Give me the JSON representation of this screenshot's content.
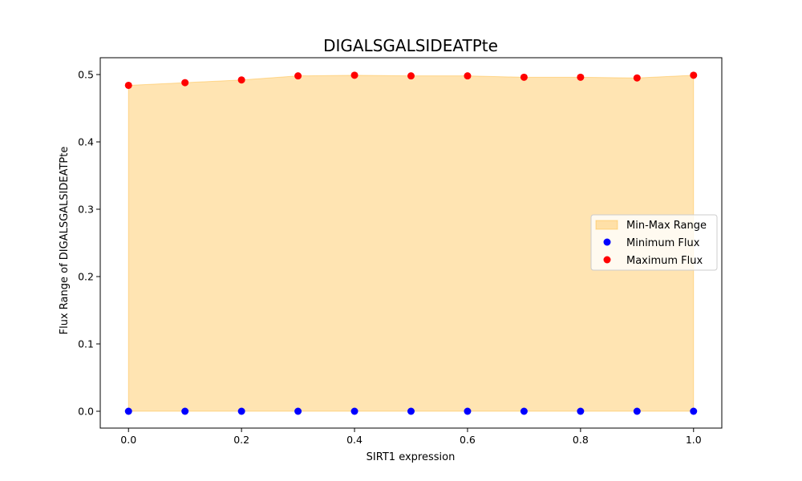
{
  "chart_data": {
    "type": "scatter",
    "title": "DIGALSGALSIDEATPte",
    "xlabel": "SIRT1 expression",
    "ylabel": "Flux Range of DIGALSGALSIDEATPte",
    "x": [
      0.0,
      0.1,
      0.2,
      0.3,
      0.4,
      0.5,
      0.6,
      0.7,
      0.8,
      0.9,
      1.0
    ],
    "series": [
      {
        "name": "Minimum Flux",
        "color": "#0000ff",
        "values": [
          0,
          0,
          0,
          0,
          0,
          0,
          0,
          0,
          0,
          0,
          0
        ]
      },
      {
        "name": "Maximum Flux",
        "color": "#ff0000",
        "values": [
          0.484,
          0.488,
          0.492,
          0.498,
          0.499,
          0.498,
          0.498,
          0.496,
          0.496,
          0.495,
          0.499
        ]
      }
    ],
    "fill": {
      "name": "Min-Max Range",
      "color": "#ffa500",
      "opacity": 0.3
    },
    "xlim": [
      -0.05,
      1.05
    ],
    "ylim": [
      -0.025,
      0.525
    ],
    "xticks": [
      0.0,
      0.2,
      0.4,
      0.6,
      0.8,
      1.0
    ],
    "xtick_labels": [
      "0.0",
      "0.2",
      "0.4",
      "0.6",
      "0.8",
      "1.0"
    ],
    "yticks": [
      0.0,
      0.1,
      0.2,
      0.3,
      0.4,
      0.5
    ],
    "ytick_labels": [
      "0.0",
      "0.1",
      "0.2",
      "0.3",
      "0.4",
      "0.5"
    ],
    "legend": [
      "Min-Max Range",
      "Minimum Flux",
      "Maximum Flux"
    ],
    "legend_position": "center-right",
    "grid": false
  }
}
